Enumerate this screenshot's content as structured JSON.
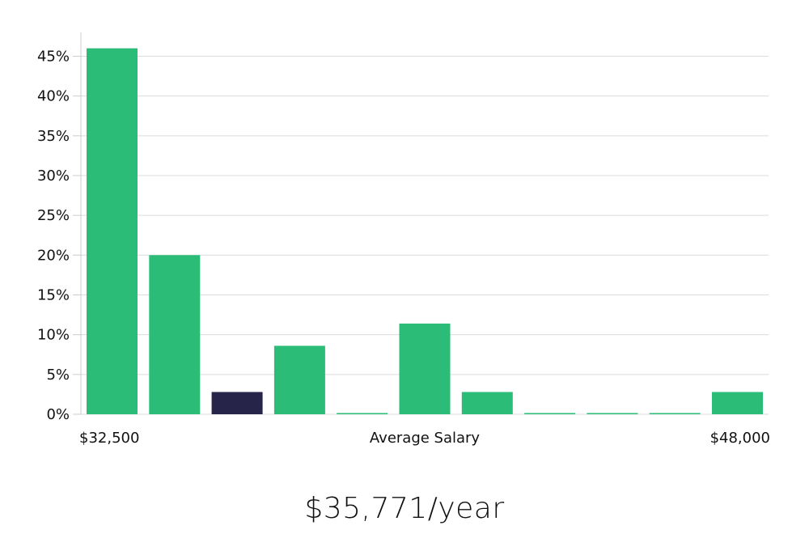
{
  "headline": "$35,771/year",
  "chart_data": {
    "type": "bar",
    "values": [
      46,
      20,
      2.8,
      8.6,
      0,
      11.4,
      2.8,
      0,
      0,
      0,
      2.8
    ],
    "highlight_index": 2,
    "ylim": [
      0,
      48
    ],
    "yticks": [
      0,
      5,
      10,
      15,
      20,
      25,
      30,
      35,
      40,
      45
    ],
    "ytick_labels": [
      "0%",
      "5%",
      "10%",
      "15%",
      "20%",
      "25%",
      "30%",
      "35%",
      "40%",
      "45%"
    ],
    "x_min_label": "$32,500",
    "x_mid_label": "Average Salary",
    "x_max_label": "$48,000",
    "grid": true,
    "colors": {
      "bar": "#2bbd77",
      "highlight": "#262449",
      "grid": "#dcdcdc",
      "axis": "#cccccc"
    }
  }
}
